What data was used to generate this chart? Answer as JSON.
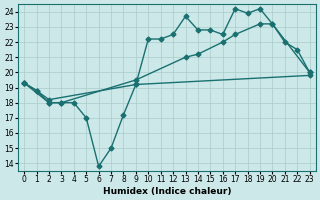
{
  "title": "",
  "xlabel": "Humidex (Indice chaleur)",
  "ylabel": "",
  "background_color": "#cce8e8",
  "grid_color": "#aacccc",
  "line_color": "#1a7070",
  "xlim": [
    -0.5,
    23.5
  ],
  "ylim": [
    13.5,
    24.5
  ],
  "yticks": [
    14,
    15,
    16,
    17,
    18,
    19,
    20,
    21,
    22,
    23,
    24
  ],
  "xticks": [
    0,
    1,
    2,
    3,
    4,
    5,
    6,
    7,
    8,
    9,
    10,
    11,
    12,
    13,
    14,
    15,
    16,
    17,
    18,
    19,
    20,
    21,
    22,
    23
  ],
  "series1_x": [
    0,
    1,
    2,
    3,
    4,
    5,
    6,
    7,
    8,
    9,
    10,
    11,
    12,
    13,
    14,
    15,
    16,
    17,
    18,
    19,
    20,
    21,
    22,
    23
  ],
  "series1_y": [
    19.3,
    18.8,
    18.0,
    18.0,
    18.0,
    17.0,
    13.8,
    15.0,
    17.2,
    19.2,
    22.2,
    22.2,
    22.5,
    23.7,
    22.8,
    22.8,
    22.5,
    24.2,
    23.9,
    24.2,
    23.2,
    22.0,
    21.5,
    20.0
  ],
  "series2_x": [
    0,
    2,
    3,
    9,
    13,
    14,
    16,
    17,
    19,
    20,
    23
  ],
  "series2_y": [
    19.3,
    18.0,
    18.0,
    19.5,
    21.0,
    21.2,
    22.0,
    22.5,
    23.2,
    23.2,
    20.0
  ],
  "series3_x": [
    0,
    1,
    2,
    9,
    23
  ],
  "series3_y": [
    19.3,
    18.8,
    18.2,
    19.2,
    19.8
  ],
  "marker": "D",
  "markersize": 2.5,
  "linewidth": 1.0
}
